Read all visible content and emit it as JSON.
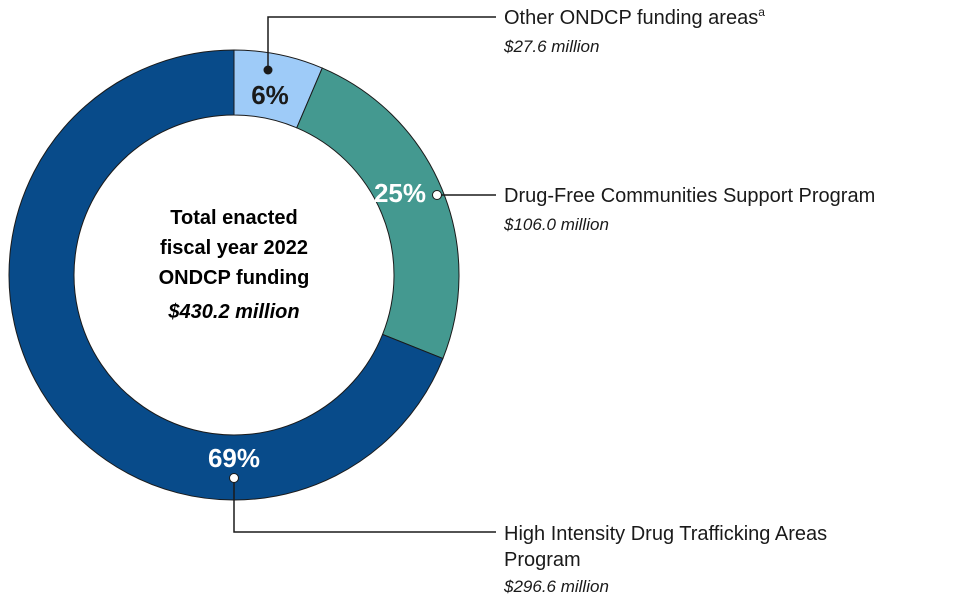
{
  "chart_data": {
    "type": "pie",
    "donut": true,
    "center": {
      "lines": [
        "Total enacted",
        "fiscal year 2022",
        "ONDCP funding"
      ],
      "amount": "$430.2 million"
    },
    "slices": [
      {
        "name": "Other ONDCP funding areas",
        "superscript": "a",
        "value": 27.6,
        "percent_label": "6%",
        "amount_label": "$27.6 million",
        "color": "#9ecbf8",
        "label_color": "#1a1a1a"
      },
      {
        "name": "Drug-Free Communities Support Program",
        "value": 106.0,
        "percent_label": "25%",
        "amount_label": "$106.0 million",
        "color": "#449990",
        "label_color": "#ffffff"
      },
      {
        "name": "High Intensity Drug Trafficking Areas Program",
        "name_lines": [
          "High Intensity Drug Trafficking Areas",
          "Program"
        ],
        "value": 296.6,
        "percent_label": "69%",
        "amount_label": "$296.6 million",
        "color": "#084b8a",
        "label_color": "#ffffff"
      }
    ]
  }
}
